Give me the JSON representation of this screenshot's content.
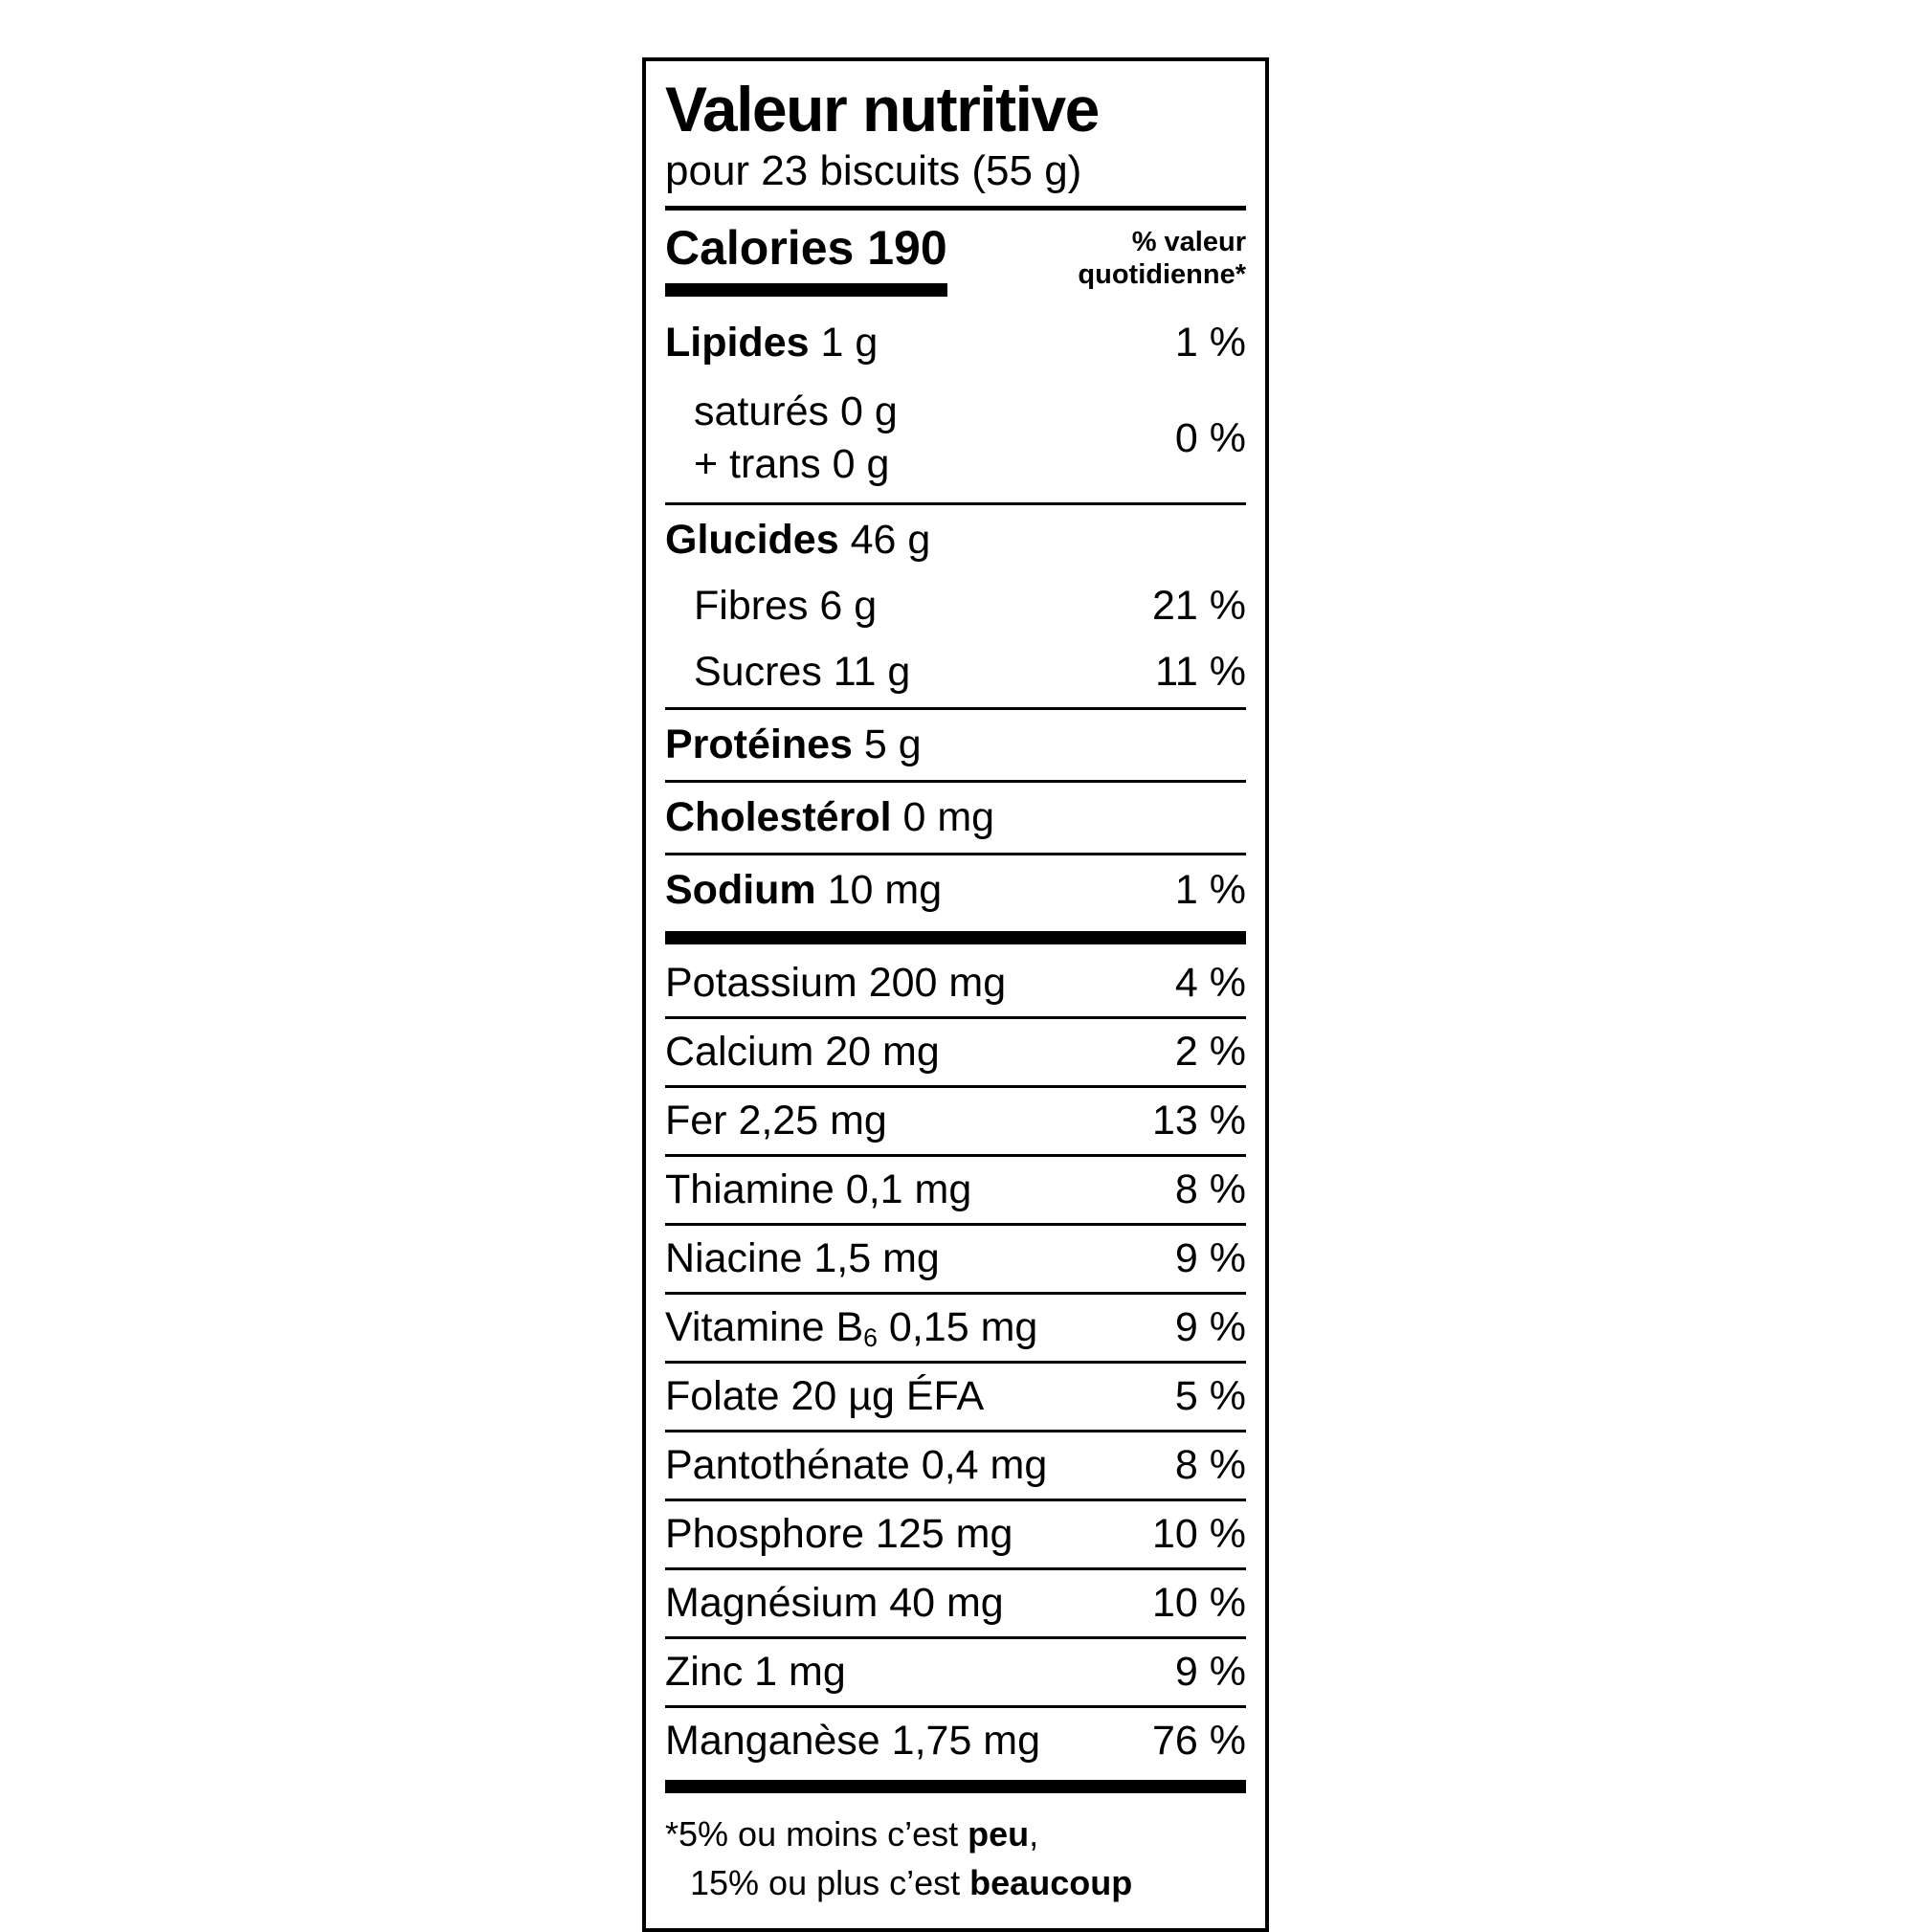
{
  "label": {
    "title": "Valeur nutritive",
    "serving": "pour 23 biscuits (55 g)",
    "calories_label": "Calories 190",
    "dv_header_line1": "% valeur",
    "dv_header_line2": "quotidienne*"
  },
  "colors": {
    "ink": "#000000",
    "paper": "#ffffff"
  },
  "main_section": [
    {
      "items": [
        {
          "parts": [
            {
              "t": "Lipides",
              "b": true
            },
            {
              "t": " 1 g"
            }
          ],
          "dv": "1 %"
        },
        {
          "multiline": [
            "saturés 0 g",
            "+ trans 0 g"
          ],
          "indent": true,
          "dv": "0 %"
        }
      ]
    },
    {
      "items": [
        {
          "parts": [
            {
              "t": "Glucides",
              "b": true
            },
            {
              "t": " 46 g"
            }
          ],
          "dv": ""
        },
        {
          "parts": [
            {
              "t": "Fibres 6 g"
            }
          ],
          "indent": true,
          "dv": "21 %"
        },
        {
          "parts": [
            {
              "t": "Sucres 11 g"
            }
          ],
          "indent": true,
          "dv": "11 %"
        }
      ]
    },
    {
      "items": [
        {
          "parts": [
            {
              "t": "Protéines",
              "b": true
            },
            {
              "t": " 5 g"
            }
          ],
          "dv": ""
        }
      ]
    },
    {
      "items": [
        {
          "parts": [
            {
              "t": "Cholestérol",
              "b": true
            },
            {
              "t": " 0 mg"
            }
          ],
          "dv": ""
        }
      ]
    },
    {
      "items": [
        {
          "parts": [
            {
              "t": "Sodium",
              "b": true
            },
            {
              "t": " 10 mg"
            }
          ],
          "dv": "1 %"
        }
      ]
    }
  ],
  "micronutrient_section": [
    {
      "parts": [
        {
          "t": "Potassium 200 mg"
        }
      ],
      "dv": "4 %"
    },
    {
      "parts": [
        {
          "t": "Calcium 20 mg"
        }
      ],
      "dv": "2 %"
    },
    {
      "parts": [
        {
          "t": "Fer 2,25 mg"
        }
      ],
      "dv": "13 %"
    },
    {
      "parts": [
        {
          "t": "Thiamine 0,1 mg"
        }
      ],
      "dv": "8 %"
    },
    {
      "parts": [
        {
          "t": "Niacine 1,5 mg"
        }
      ],
      "dv": "9 %"
    },
    {
      "parts": [
        {
          "t": "Vitamine B"
        },
        {
          "t": "6",
          "sub": true
        },
        {
          "t": " 0,15 mg"
        }
      ],
      "dv": "9 %"
    },
    {
      "parts": [
        {
          "t": "Folate 20 µg ÉFA"
        }
      ],
      "dv": "5 %"
    },
    {
      "parts": [
        {
          "t": "Pantothénate 0,4 mg"
        }
      ],
      "dv": "8 %"
    },
    {
      "parts": [
        {
          "t": "Phosphore 125 mg"
        }
      ],
      "dv": "10 %"
    },
    {
      "parts": [
        {
          "t": "Magnésium 40 mg"
        }
      ],
      "dv": "10 %"
    },
    {
      "parts": [
        {
          "t": "Zinc 1 mg"
        }
      ],
      "dv": "9 %"
    },
    {
      "parts": [
        {
          "t": "Manganèse 1,75 mg"
        }
      ],
      "dv": "76 %"
    }
  ],
  "footnote": [
    {
      "parts": [
        {
          "t": "*5% ou moins c’est "
        },
        {
          "t": "peu",
          "b": true
        },
        {
          "t": ","
        }
      ]
    },
    {
      "parts": [
        {
          "t": "15% ou plus c’est "
        },
        {
          "t": "beaucoup",
          "b": true
        }
      ],
      "indent": true
    }
  ]
}
